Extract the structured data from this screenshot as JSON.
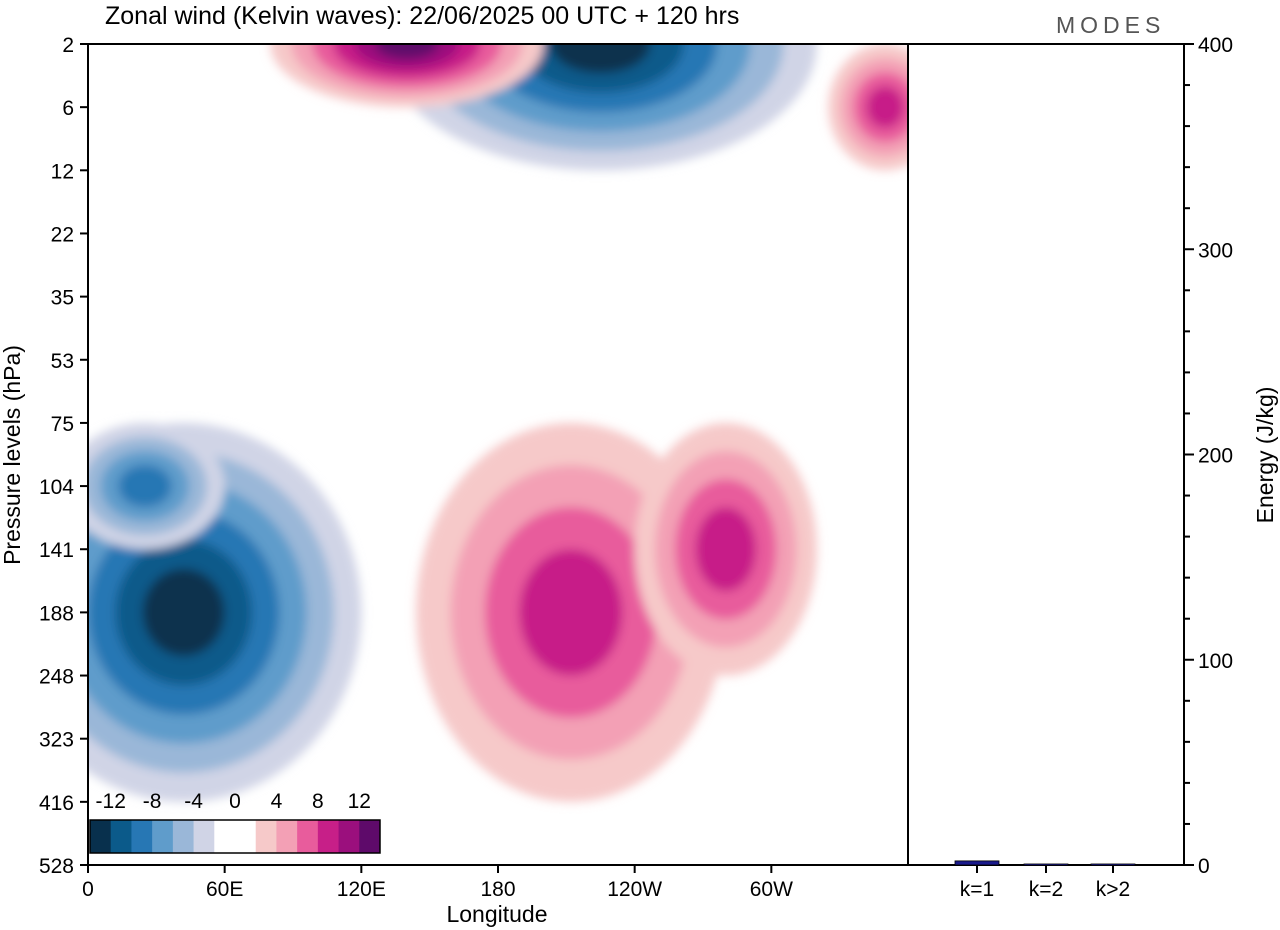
{
  "title": "Zonal wind (Kelvin waves):  22/06/2025  00 UTC  + 120 hrs",
  "logo": "MODES",
  "chart_data": [
    {
      "type": "heatmap",
      "title": "Zonal wind (Kelvin waves):  22/06/2025  00 UTC  + 120 hrs",
      "xlabel": "Longitude",
      "ylabel": "Pressure levels (hPa)",
      "x_ticks": [
        "0",
        "60E",
        "120E",
        "180",
        "120W",
        "60W"
      ],
      "x_tick_deg": [
        0,
        60,
        120,
        180,
        240,
        300
      ],
      "x_range_deg": [
        0,
        360
      ],
      "y_ticks": [
        "2",
        "6",
        "12",
        "22",
        "35",
        "53",
        "75",
        "104",
        "141",
        "188",
        "248",
        "323",
        "416",
        "528"
      ],
      "y_order": "top-to-bottom",
      "colorbar": {
        "labels": [
          "-12",
          "-8",
          "-4",
          "0",
          "4",
          "8",
          "12"
        ],
        "colors": [
          "#08304d",
          "#0b5a8a",
          "#2777b4",
          "#5f9ccb",
          "#9ab7d8",
          "#d0d4e6",
          "#ffffff",
          "#ffffff",
          "#f6c9c9",
          "#f3a0b5",
          "#e85c9c",
          "#c71f88",
          "#9b0f7d",
          "#5e0a6a"
        ]
      },
      "features": [
        {
          "sign": "negative",
          "peak": -12,
          "lon_center": 42,
          "p_center": "188",
          "lon_span": [
            25,
            120
          ],
          "p_span": [
            "104",
            "416"
          ]
        },
        {
          "sign": "positive",
          "peak": 8,
          "lon_center": 212,
          "p_center": "188",
          "lon_span": [
            150,
            280
          ],
          "p_span": [
            "104",
            "416"
          ]
        },
        {
          "sign": "positive",
          "peak": 8,
          "lon_center": 280,
          "p_center": "141",
          "lon_span": [
            240,
            315
          ],
          "p_span": [
            "75",
            "248"
          ]
        },
        {
          "sign": "negative",
          "peak": -8,
          "lon_center": 25,
          "p_center": "104",
          "lon_span": [
            0,
            60
          ],
          "p_span": [
            "75",
            "141"
          ]
        },
        {
          "sign": "negative",
          "peak": -12,
          "lon_center": 225,
          "p_center": "2",
          "lon_span": [
            130,
            270
          ],
          "p_span": [
            "2",
            "12"
          ]
        },
        {
          "sign": "positive",
          "peak": 12,
          "lon_center": 140,
          "p_center": "2",
          "lon_span": [
            100,
            200
          ],
          "p_span": [
            "2",
            "6"
          ]
        },
        {
          "sign": "positive",
          "peak": 8,
          "lon_center": 350,
          "p_center": "6",
          "lon_span": [
            325,
            360
          ],
          "p_span": [
            "2",
            "12"
          ]
        }
      ]
    },
    {
      "type": "bar",
      "categories": [
        "k=1",
        "k=2",
        "k>2"
      ],
      "values": [
        2,
        0.5,
        0.5
      ],
      "ylabel": "Energy (J/kg)",
      "ylim": [
        0,
        400
      ],
      "y_ticks": [
        "0",
        "100",
        "200",
        "300",
        "400"
      ],
      "bar_color": "#1a1a8c"
    }
  ]
}
